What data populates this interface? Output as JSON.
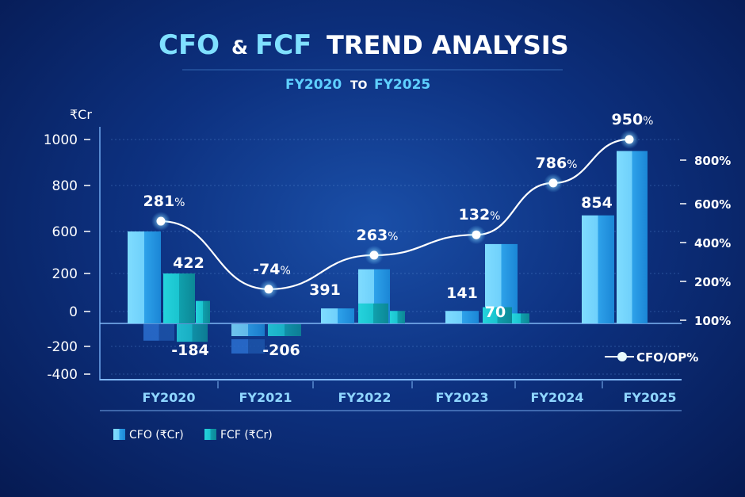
{
  "chart_data": {
    "type": "bar",
    "title_part1": "CFO",
    "title_amp": "&",
    "title_part2": "FCF",
    "title_part3": "TREND ANALYSIS",
    "subtitle_from": "FY2020",
    "subtitle_to_word": "TO",
    "subtitle_to": "FY2025",
    "ylabel": "₹Cr",
    "left_ticks": [
      "1000",
      "800",
      "600",
      "200",
      "0",
      "-200",
      "-400"
    ],
    "right_ticks": [
      "800%",
      "600%",
      "400%",
      "200%",
      "100%"
    ],
    "categories": [
      "FY2020",
      "FY2021",
      "FY2022",
      "FY2023",
      "FY2024",
      "FY2025"
    ],
    "bars": [
      [
        {
          "series": "CFO",
          "value": 600
        },
        {
          "series": "FCF",
          "value": 200
        },
        {
          "series": "FCF",
          "value": 90
        },
        {
          "series": "CFO",
          "value": -150
        },
        {
          "series": "FCF",
          "value": -160
        }
      ],
      [
        {
          "series": "CFO",
          "value": -100
        },
        {
          "series": "CFO",
          "value": -206
        },
        {
          "series": "FCF",
          "value": -100
        }
      ],
      [
        {
          "series": "CFO",
          "value": 60
        },
        {
          "series": "CFO",
          "value": 240
        },
        {
          "series": "FCF",
          "value": 80
        },
        {
          "series": "FCF",
          "value": 50
        }
      ],
      [
        {
          "series": "CFO",
          "value": 50
        },
        {
          "series": "CFO",
          "value": 480
        },
        {
          "series": "FCF",
          "value": 65
        },
        {
          "series": "FCF",
          "value": 40
        }
      ],
      [
        {
          "series": "CFO",
          "value": 670
        }
      ],
      [
        {
          "series": "CFO",
          "value": 950
        }
      ]
    ],
    "bar_labels": [
      "422",
      "-184",
      "-206",
      "391",
      "141",
      "70",
      "854"
    ],
    "line_series": {
      "name": "CFO/OP%",
      "values": [
        510,
        180,
        335,
        440,
        695,
        895
      ],
      "labels": [
        "281",
        "-74",
        "263",
        "132",
        "786",
        "950"
      ],
      "suffix": "%"
    },
    "legend": [
      "CFO (₹Cr)",
      "FCF (₹Cr)"
    ],
    "colors": {
      "cfo": "#3fb8f0",
      "fcf": "#14b5c0",
      "line": "#ffffff",
      "axis_text": "#ffffff",
      "cat_text": "#8fd6ff"
    }
  }
}
